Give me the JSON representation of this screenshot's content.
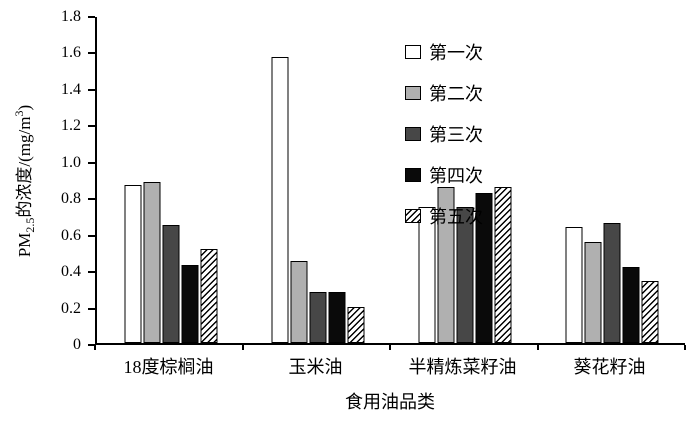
{
  "chart_data": {
    "type": "bar",
    "title": "",
    "xlabel": "食用油品类",
    "ylabel": {
      "prefix": "PM",
      "sub": "2.5",
      "mid": "的浓度/(mg/m",
      "sup": "3",
      "suffix": ")"
    },
    "categories": [
      "18度棕榈油",
      "玉米油",
      "半精炼菜籽油",
      "葵花籽油"
    ],
    "series": [
      {
        "name": "第一次",
        "fill": "#ffffff",
        "pattern": "solid",
        "values": [
          0.87,
          1.58,
          0.75,
          0.64
        ]
      },
      {
        "name": "第二次",
        "fill": "#b0b0b0",
        "pattern": "solid",
        "values": [
          0.89,
          0.45,
          0.86,
          0.56
        ]
      },
      {
        "name": "第三次",
        "fill": "#474747",
        "pattern": "solid",
        "values": [
          0.65,
          0.28,
          0.75,
          0.66
        ]
      },
      {
        "name": "第四次",
        "fill": "#0a0a0a",
        "pattern": "solid",
        "values": [
          0.43,
          0.28,
          0.83,
          0.42
        ]
      },
      {
        "name": "第五次",
        "fill": "#ffffff",
        "pattern": "hatch",
        "values": [
          0.52,
          0.2,
          0.86,
          0.34
        ]
      }
    ],
    "ylim": [
      0,
      1.8
    ],
    "ytick_step": 0.2,
    "yticks": [
      "0",
      "0.2",
      "0.4",
      "0.6",
      "0.8",
      "1.0",
      "1.2",
      "1.4",
      "1.6",
      "1.8"
    ],
    "grid": false,
    "legend_position": "inside-top-center",
    "colors": {
      "axis": "#000000",
      "background": "#ffffff"
    }
  }
}
